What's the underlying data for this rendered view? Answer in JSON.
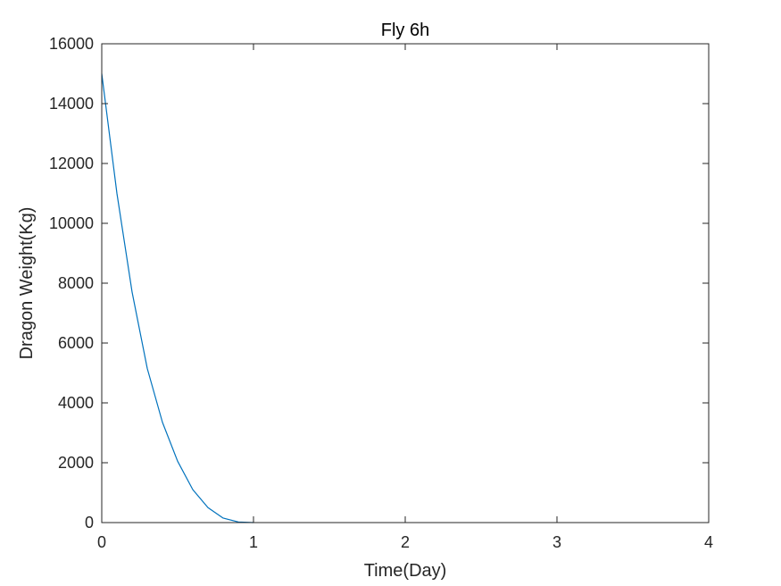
{
  "chart_data": {
    "type": "line",
    "title": "Fly 6h",
    "xlabel": "Time(Day)",
    "ylabel": "Dragon Weight(Kg)",
    "xlim": [
      0,
      4
    ],
    "ylim": [
      0,
      16000
    ],
    "xticks": [
      0,
      1,
      2,
      3,
      4
    ],
    "xtick_labels": [
      "0",
      "1",
      "2",
      "3",
      "4"
    ],
    "yticks": [
      0,
      2000,
      4000,
      6000,
      8000,
      10000,
      12000,
      14000,
      16000
    ],
    "ytick_labels": [
      "0",
      "2000",
      "4000",
      "6000",
      "8000",
      "10000",
      "12000",
      "14000",
      "16000"
    ],
    "grid": false,
    "series": [
      {
        "color": "#0072BD",
        "x": [
          0,
          0.1,
          0.2,
          0.3,
          0.4,
          0.5,
          0.6,
          0.7,
          0.8,
          0.9,
          1.0
        ],
        "y": [
          15000,
          11000,
          7700,
          5150,
          3350,
          2050,
          1100,
          500,
          150,
          20,
          0
        ]
      }
    ]
  }
}
